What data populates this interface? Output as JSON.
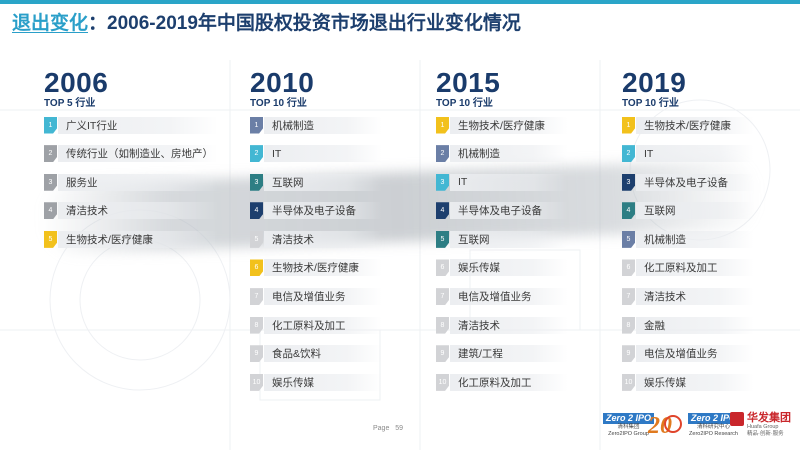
{
  "title": {
    "accent": "退出变化",
    "separator": "：",
    "main": "2006-2019年中国股权投资市场退出行业变化情况"
  },
  "columns": [
    {
      "year": "2006",
      "top_label": "TOP 5 行业",
      "items": [
        {
          "rank": "1",
          "label": "广义IT行业",
          "color": "#43b7d3"
        },
        {
          "rank": "2",
          "label": "传统行业（如制造业、房地产）",
          "color": "#9ea1a6"
        },
        {
          "rank": "3",
          "label": "服务业",
          "color": "#9ea1a6"
        },
        {
          "rank": "4",
          "label": "清洁技术",
          "color": "#9ea1a6"
        },
        {
          "rank": "5",
          "label": "生物技术/医疗健康",
          "color": "#f2c11c"
        }
      ]
    },
    {
      "year": "2010",
      "top_label": "TOP 10 行业",
      "items": [
        {
          "rank": "1",
          "label": "机械制造",
          "color": "#6b7fa6"
        },
        {
          "rank": "2",
          "label": "IT",
          "color": "#43b7d3"
        },
        {
          "rank": "3",
          "label": "互联网",
          "color": "#2d7e84"
        },
        {
          "rank": "4",
          "label": "半导体及电子设备",
          "color": "#1d3f6e"
        },
        {
          "rank": "5",
          "label": "清洁技术",
          "color": "#d2d3d6"
        },
        {
          "rank": "6",
          "label": "生物技术/医疗健康",
          "color": "#f2c11c"
        },
        {
          "rank": "7",
          "label": "电信及增值业务",
          "color": "#d2d3d6"
        },
        {
          "rank": "8",
          "label": "化工原料及加工",
          "color": "#d2d3d6"
        },
        {
          "rank": "9",
          "label": "食品&饮料",
          "color": "#d2d3d6"
        },
        {
          "rank": "10",
          "label": "娱乐传媒",
          "color": "#d2d3d6"
        }
      ]
    },
    {
      "year": "2015",
      "top_label": "TOP 10 行业",
      "items": [
        {
          "rank": "1",
          "label": "生物技术/医疗健康",
          "color": "#f2c11c"
        },
        {
          "rank": "2",
          "label": "机械制造",
          "color": "#6b7fa6"
        },
        {
          "rank": "3",
          "label": "IT",
          "color": "#43b7d3"
        },
        {
          "rank": "4",
          "label": "半导体及电子设备",
          "color": "#1d3f6e"
        },
        {
          "rank": "5",
          "label": "互联网",
          "color": "#2d7e84"
        },
        {
          "rank": "6",
          "label": "娱乐传媒",
          "color": "#d2d3d6"
        },
        {
          "rank": "7",
          "label": "电信及增值业务",
          "color": "#d2d3d6"
        },
        {
          "rank": "8",
          "label": "清洁技术",
          "color": "#d2d3d6"
        },
        {
          "rank": "9",
          "label": "建筑/工程",
          "color": "#d2d3d6"
        },
        {
          "rank": "10",
          "label": "化工原料及加工",
          "color": "#d2d3d6"
        }
      ]
    },
    {
      "year": "2019",
      "top_label": "TOP 10 行业",
      "items": [
        {
          "rank": "1",
          "label": "生物技术/医疗健康",
          "color": "#f2c11c"
        },
        {
          "rank": "2",
          "label": "IT",
          "color": "#43b7d3"
        },
        {
          "rank": "3",
          "label": "半导体及电子设备",
          "color": "#1d3f6e"
        },
        {
          "rank": "4",
          "label": "互联网",
          "color": "#2d7e84"
        },
        {
          "rank": "5",
          "label": "机械制造",
          "color": "#6b7fa6"
        },
        {
          "rank": "6",
          "label": "化工原料及加工",
          "color": "#d2d3d6"
        },
        {
          "rank": "7",
          "label": "清洁技术",
          "color": "#d2d3d6"
        },
        {
          "rank": "8",
          "label": "金融",
          "color": "#d2d3d6"
        },
        {
          "rank": "9",
          "label": "电信及增值业务",
          "color": "#d2d3d6"
        },
        {
          "rank": "10",
          "label": "娱乐传媒",
          "color": "#d2d3d6"
        }
      ]
    }
  ],
  "footer": {
    "page_label": "Page",
    "page_number": "59",
    "logo1_mark": "Zero 2 IPO",
    "logo1_cn": "清科集团",
    "logo1_en": "Zero2IPO Group",
    "logo2_mark": "20",
    "logo3_mark": "Zero 2 IPO",
    "logo3_cn": "清科研究中心",
    "logo3_en": "Zero2IPO Research",
    "logo4_cn": "华发集团",
    "logo4_en": "Huafa Group",
    "logo4_tag": "精品·创新·服务"
  }
}
